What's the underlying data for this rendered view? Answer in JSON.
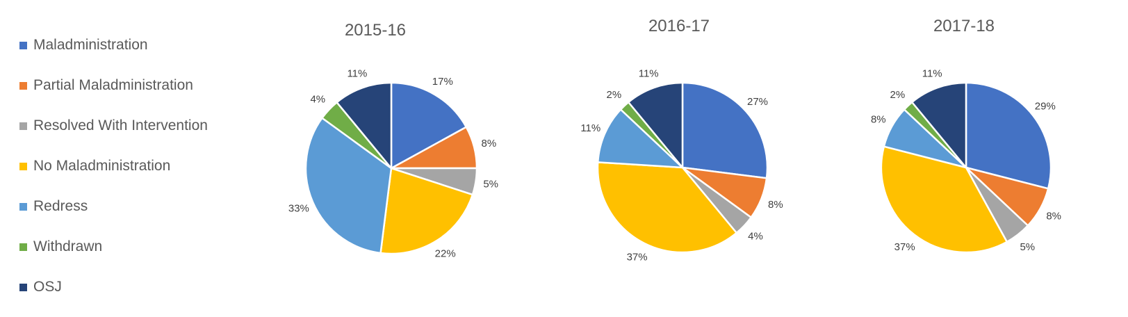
{
  "legend_entries": [
    "Maladministration",
    "Partial Maladministration",
    "Resolved With Intervention",
    "No Maladministration",
    "Redress",
    "Withdrawn",
    "OSJ"
  ],
  "colors": [
    "#4472C4",
    "#ED7D31",
    "#A5A5A5",
    "#FFC000",
    "#5B9BD5",
    "#70AD47",
    "#264478"
  ],
  "chart_data": [
    {
      "type": "pie",
      "title": "2015-16",
      "categories": [
        "Maladministration",
        "Partial Maladministration",
        "Resolved With Intervention",
        "No Maladministration",
        "Redress",
        "Withdrawn",
        "OSJ"
      ],
      "values": [
        17,
        8,
        5,
        22,
        33,
        4,
        11
      ],
      "labels": [
        "17%",
        "8%",
        "5%",
        "22%",
        "33%",
        "4%",
        "11%"
      ]
    },
    {
      "type": "pie",
      "title": "2016-17",
      "categories": [
        "Maladministration",
        "Partial Maladministration",
        "Resolved With Intervention",
        "No Maladministration",
        "Redress",
        "Withdrawn",
        "OSJ"
      ],
      "values": [
        27,
        8,
        4,
        37,
        11,
        2,
        11
      ],
      "labels": [
        "27%",
        "8%",
        "4%",
        "37%",
        "11%",
        "2%",
        "11%"
      ]
    },
    {
      "type": "pie",
      "title": "2017-18",
      "categories": [
        "Maladministration",
        "Partial Maladministration",
        "Resolved With Intervention",
        "No Maladministration",
        "Redress",
        "Withdrawn",
        "OSJ"
      ],
      "values": [
        29,
        8,
        5,
        37,
        8,
        2,
        11
      ],
      "labels": [
        "29%",
        "8%",
        "5%",
        "37%",
        "8%",
        "2%",
        "11%"
      ]
    }
  ]
}
